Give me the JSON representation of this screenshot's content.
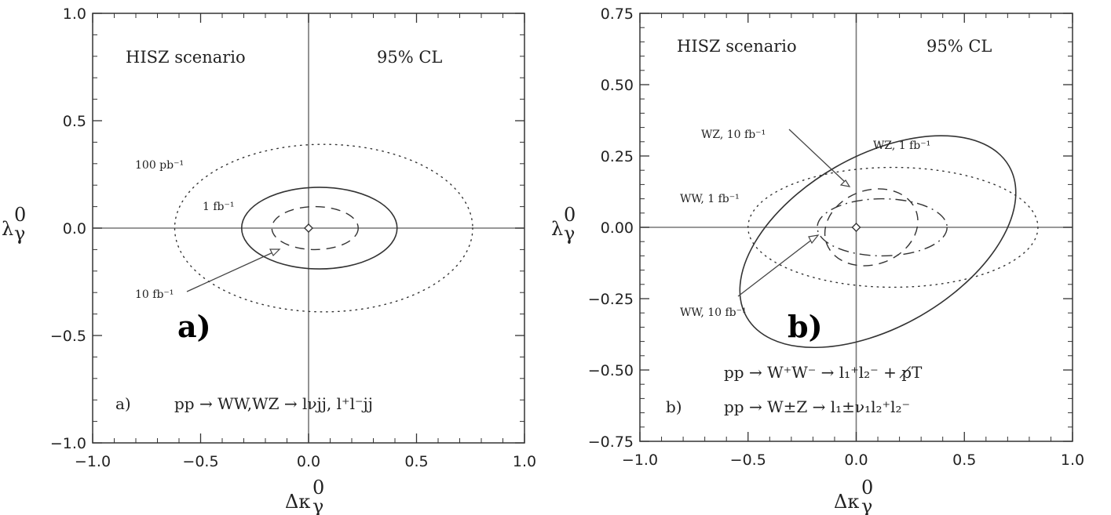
{
  "chart_data": [
    {
      "type": "contour",
      "panel": "a",
      "xlim": [
        -1.0,
        1.0
      ],
      "ylim": [
        -1.0,
        1.0
      ],
      "x_ticks": [
        "−1.0",
        "−0.5",
        "0.0",
        "0.5",
        "1.0"
      ],
      "y_ticks": [
        "−1.0",
        "−0.5",
        "0.0",
        "0.5",
        "1.0"
      ],
      "xlabel": {
        "main": "Δκ",
        "sup": "0",
        "sub": "γ"
      },
      "ylabel": {
        "main": "λ",
        "sup": "0",
        "sub": "γ"
      },
      "texts": {
        "left": "HISZ scenario",
        "right": "95% CL",
        "letter": "a)"
      },
      "process": {
        "prefix": "a)",
        "line": "pp → WW,WZ → lνjj, l⁺l⁻jj"
      },
      "series": [
        {
          "label": "100 pb⁻¹",
          "style": "dotted",
          "center": [
            0.07,
            0.0
          ],
          "rx": 0.69,
          "ry": 0.39,
          "angle": 0
        },
        {
          "label": "1 fb⁻¹",
          "style": "solid",
          "center": [
            0.05,
            0.0
          ],
          "rx": 0.36,
          "ry": 0.19,
          "angle": 0
        },
        {
          "label": "10 fb⁻¹",
          "style": "dashed",
          "center": [
            0.03,
            0.0
          ],
          "rx": 0.2,
          "ry": 0.1,
          "angle": 0
        }
      ],
      "sm_point": [
        0.0,
        0.0
      ]
    },
    {
      "type": "contour",
      "panel": "b",
      "xlim": [
        -1.0,
        1.0
      ],
      "ylim": [
        -0.75,
        0.75
      ],
      "x_ticks": [
        "−1.0",
        "−0.5",
        "0.0",
        "0.5",
        "1.0"
      ],
      "y_ticks": [
        "−0.75",
        "−0.50",
        "−0.25",
        "0.00",
        "0.25",
        "0.50",
        "0.75"
      ],
      "xlabel": {
        "main": "Δκ",
        "sup": "0",
        "sub": "γ"
      },
      "ylabel": {
        "main": "λ",
        "sup": "0",
        "sub": "γ"
      },
      "texts": {
        "left": "HISZ scenario",
        "right": "95% CL",
        "letter": "b)"
      },
      "process": {
        "prefix": "b)",
        "line1": "pp → W⁺W⁻ → l₁⁺l₂⁻ + p̸T",
        "line2": "pp → W±Z → l₁±ν₁l₂⁺l₂⁻"
      },
      "series": [
        {
          "label": "WZ, 1 fb⁻¹",
          "style": "solid",
          "center": [
            0.1,
            -0.05
          ],
          "rx": 0.7,
          "ry": 0.3,
          "angle": -30
        },
        {
          "label": "WZ, 10 fb⁻¹",
          "style": "dashed",
          "center": [
            0.07,
            0.0
          ],
          "rx": 0.22,
          "ry": 0.13,
          "angle": -20
        },
        {
          "label": "WW, 1 fb⁻¹",
          "style": "dotted",
          "center": [
            0.17,
            0.0
          ],
          "rx": 0.67,
          "ry": 0.21,
          "angle": 0
        },
        {
          "label": "WW, 10 fb⁻¹",
          "style": "dashdot",
          "center": [
            0.12,
            0.0
          ],
          "rx": 0.3,
          "ry": 0.1,
          "angle": 0
        }
      ],
      "sm_point": [
        0.0,
        0.0
      ]
    }
  ]
}
